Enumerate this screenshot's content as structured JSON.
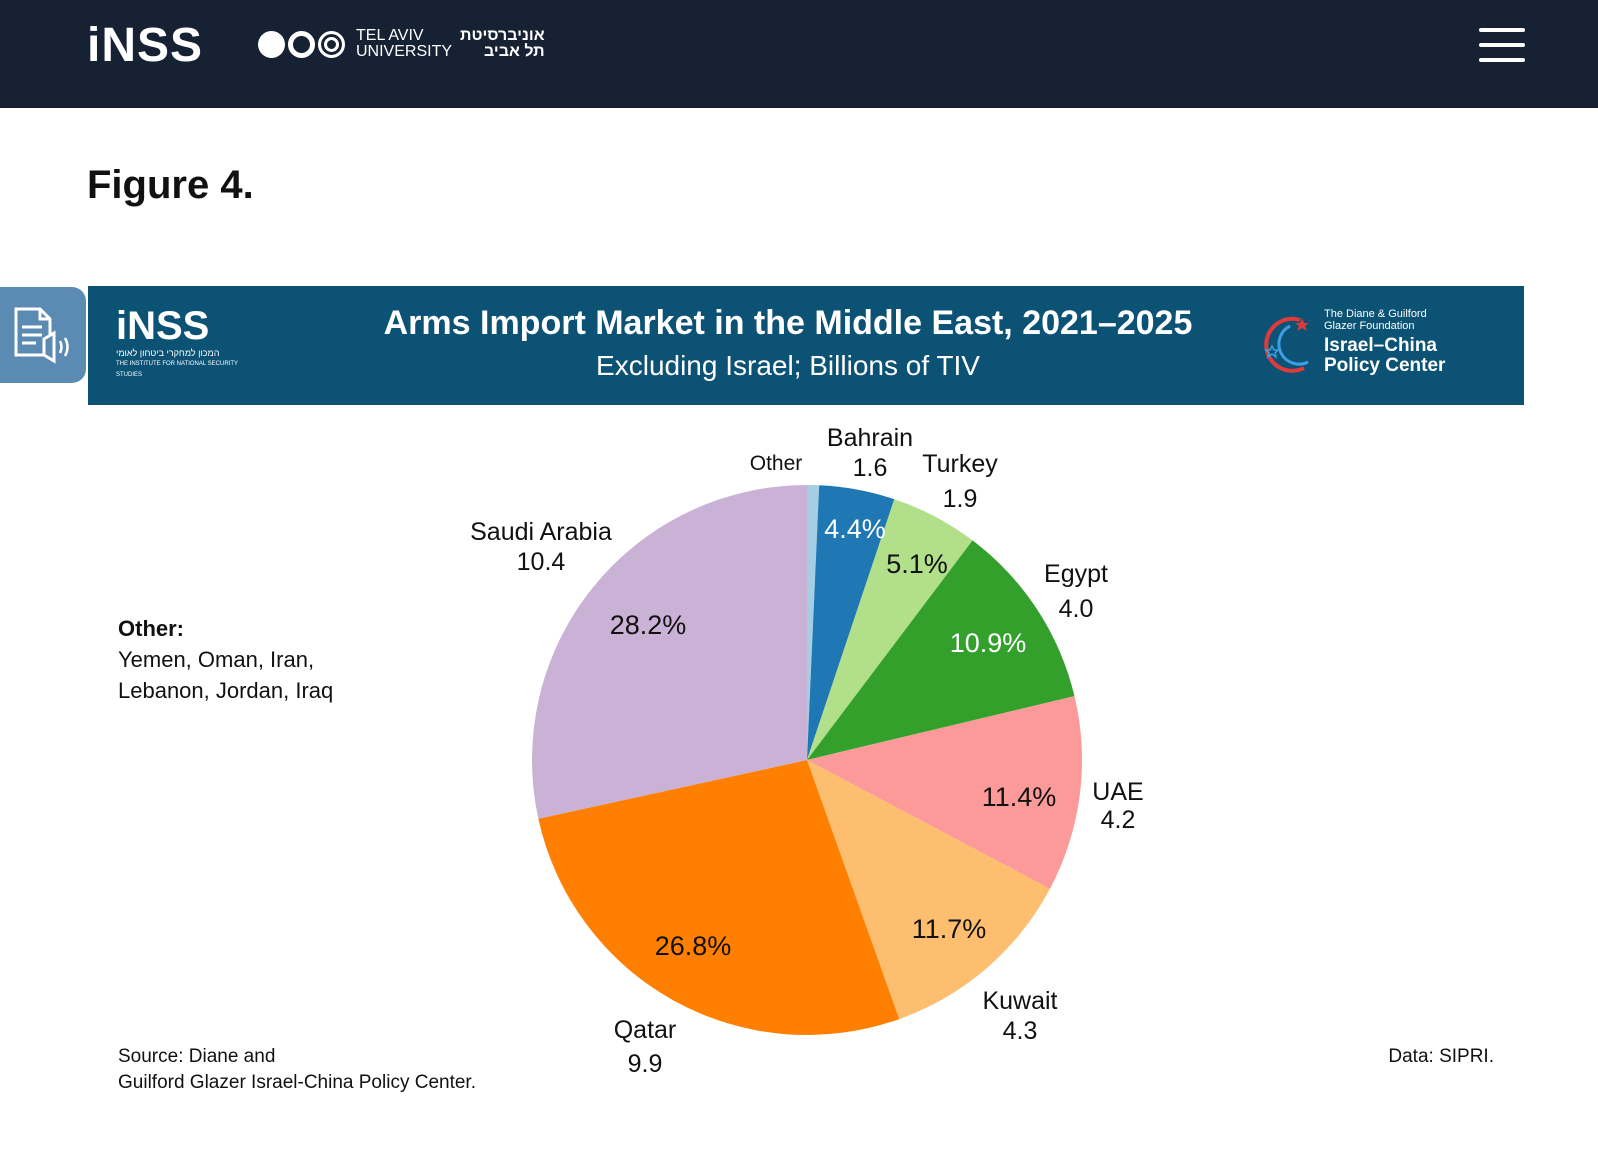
{
  "header": {
    "logo_text": "iNSS",
    "university_en_line1": "TEL AVIV",
    "university_en_line2": "UNIVERSITY",
    "university_he_line1": "אוניברסיטת",
    "university_he_line2": "תל אביב"
  },
  "page": {
    "figure_title": "Figure 4."
  },
  "banner": {
    "inss_logo": "iNSS",
    "inss_subtitle_he": "המכון למחקרי ביטחון לאומי",
    "inss_subtitle_en": "THE INSTITUTE FOR NATIONAL SECURITY STUDIES",
    "title": "Arms Import Market in the Middle East, 2021–2025",
    "subtitle": "Excluding Israel; Billions of TIV",
    "partner_foundation_line1": "The Diane & Guilford",
    "partner_foundation_line2": "Glazer Foundation",
    "partner_name_line1": "Israel–China",
    "partner_name_line2": "Policy Center"
  },
  "notes": {
    "other_header": "Other:",
    "other_line1": "Yemen, Oman, Iran,",
    "other_line2": "Lebanon, Jordan, Iraq",
    "source_line1": "Source: Diane and",
    "source_line2": "Guilford Glazer Israel-China Policy Center.",
    "data_source": "Data: SIPRI."
  },
  "chart_data": {
    "type": "pie",
    "title": "Arms Import Market in the Middle East, 2021–2025",
    "subtitle": "Excluding Israel; Billions of TIV",
    "unit": "Billions of TIV",
    "start": "top, clockwise",
    "slices": [
      {
        "name": "Other",
        "value": null,
        "percent": 0.7,
        "color": "#a6cee3",
        "value_label": "",
        "pct_label": ""
      },
      {
        "name": "Bahrain",
        "value": 1.6,
        "percent": 4.4,
        "color": "#1f78b4",
        "value_label": "1.6",
        "pct_label": "4.4%",
        "pct_color": "#ffffff"
      },
      {
        "name": "Turkey",
        "value": 1.9,
        "percent": 5.1,
        "color": "#b2df8a",
        "value_label": "1.9",
        "pct_label": "5.1%",
        "pct_color": "#111111"
      },
      {
        "name": "Egypt",
        "value": 4.0,
        "percent": 10.9,
        "color": "#33a02c",
        "value_label": "4.0",
        "pct_label": "10.9%",
        "pct_color": "#ffffff"
      },
      {
        "name": "UAE",
        "value": 4.2,
        "percent": 11.4,
        "color": "#fb9a99",
        "value_label": "4.2",
        "pct_label": "11.4%",
        "pct_color": "#111111"
      },
      {
        "name": "Kuwait",
        "value": 4.3,
        "percent": 11.7,
        "color": "#fdbf6f",
        "value_label": "4.3",
        "pct_label": "11.7%",
        "pct_color": "#111111"
      },
      {
        "name": "Qatar",
        "value": 9.9,
        "percent": 26.8,
        "color": "#ff7f00",
        "value_label": "9.9",
        "pct_label": "26.8%",
        "pct_color": "#111111"
      },
      {
        "name": "Saudi Arabia",
        "value": 10.4,
        "percent": 28.2,
        "color": "#cab2d6",
        "value_label": "10.4",
        "pct_label": "28.2%",
        "pct_color": "#111111"
      }
    ]
  }
}
